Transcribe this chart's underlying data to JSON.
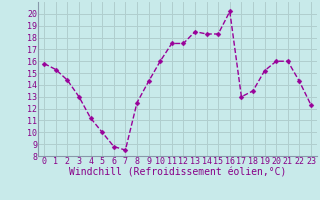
{
  "x": [
    0,
    1,
    2,
    3,
    4,
    5,
    6,
    7,
    8,
    9,
    10,
    11,
    12,
    13,
    14,
    15,
    16,
    17,
    18,
    19,
    20,
    21,
    22,
    23
  ],
  "y": [
    15.8,
    15.3,
    14.4,
    13.0,
    11.2,
    10.0,
    8.8,
    8.5,
    12.5,
    14.3,
    16.0,
    17.5,
    17.5,
    18.5,
    18.3,
    18.3,
    20.2,
    13.0,
    13.5,
    15.2,
    16.0,
    16.0,
    14.3,
    12.3
  ],
  "line_color": "#990099",
  "marker": "D",
  "markersize": 2.5,
  "linewidth": 1.0,
  "xlabel": "Windchill (Refroidissement éolien,°C)",
  "xlabel_fontsize": 7,
  "bg_color": "#c8eaea",
  "grid_color": "#b0cece",
  "spine_color": "#8899aa",
  "tick_label_color": "#880088",
  "axis_label_color": "#880088",
  "ylim": [
    8,
    21
  ],
  "xlim": [
    -0.5,
    23.5
  ],
  "yticks": [
    8,
    9,
    10,
    11,
    12,
    13,
    14,
    15,
    16,
    17,
    18,
    19,
    20
  ],
  "xticks": [
    0,
    1,
    2,
    3,
    4,
    5,
    6,
    7,
    8,
    9,
    10,
    11,
    12,
    13,
    14,
    15,
    16,
    17,
    18,
    19,
    20,
    21,
    22,
    23
  ],
  "tick_fontsize": 6
}
